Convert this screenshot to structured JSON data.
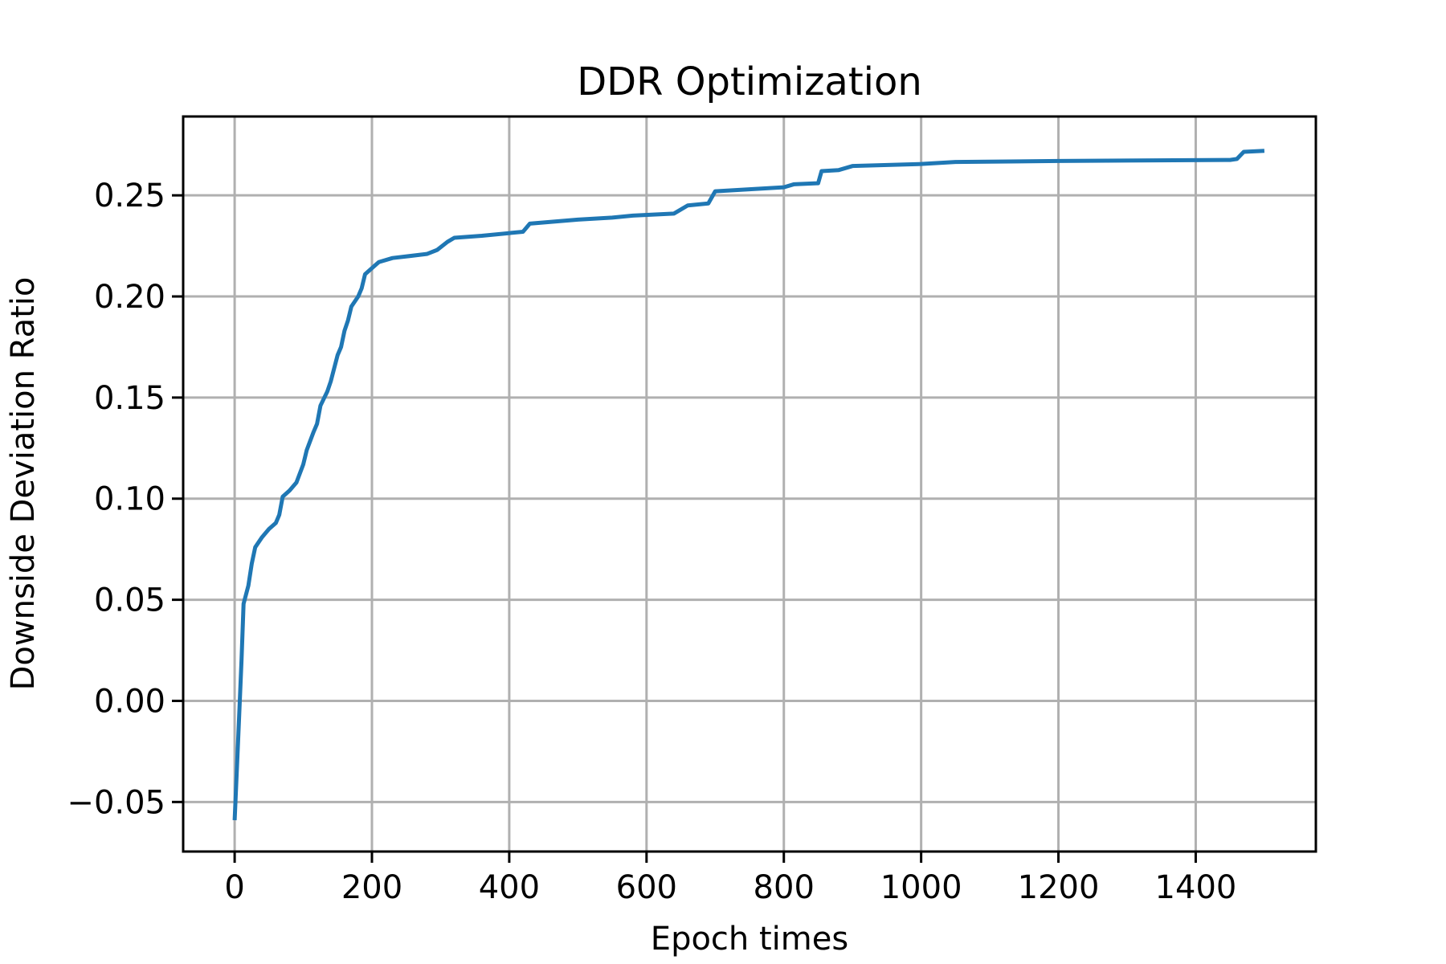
{
  "chart_data": {
    "type": "line",
    "title": "DDR Optimization",
    "x_label": "Epoch times",
    "y_label": "Downside Deviation Ratio",
    "x": [
      0,
      5,
      10,
      13,
      20,
      25,
      30,
      40,
      50,
      60,
      65,
      70,
      80,
      90,
      100,
      105,
      115,
      120,
      125,
      135,
      140,
      150,
      155,
      160,
      165,
      170,
      180,
      185,
      190,
      200,
      210,
      230,
      280,
      295,
      310,
      320,
      360,
      420,
      430,
      500,
      550,
      580,
      640,
      660,
      690,
      700,
      750,
      800,
      815,
      850,
      855,
      880,
      900,
      1000,
      1050,
      1200,
      1450,
      1460,
      1470,
      1500
    ],
    "series": [
      {
        "name": "DDR",
        "color": "#1f77b4",
        "values": [
          -0.059,
          -0.02,
          0.02,
          0.048,
          0.057,
          0.068,
          0.076,
          0.081,
          0.085,
          0.088,
          0.092,
          0.101,
          0.104,
          0.108,
          0.117,
          0.124,
          0.133,
          0.137,
          0.146,
          0.153,
          0.158,
          0.171,
          0.175,
          0.183,
          0.188,
          0.195,
          0.2,
          0.204,
          0.211,
          0.214,
          0.217,
          0.219,
          0.221,
          0.223,
          0.227,
          0.229,
          0.23,
          0.232,
          0.236,
          0.238,
          0.239,
          0.24,
          0.241,
          0.245,
          0.246,
          0.252,
          0.253,
          0.254,
          0.2555,
          0.256,
          0.262,
          0.2625,
          0.2645,
          0.2655,
          0.2665,
          0.267,
          0.2675,
          0.268,
          0.2715,
          0.272
        ]
      }
    ],
    "xlim": [
      -75,
      1575
    ],
    "ylim": [
      -0.0745,
      0.289
    ],
    "xticks": [
      0,
      200,
      400,
      600,
      800,
      1000,
      1200,
      1400
    ],
    "yticks": [
      {
        "value": -0.05,
        "label": "−0.05"
      },
      {
        "value": 0,
        "label": "0.00"
      },
      {
        "value": 0.05,
        "label": "0.05"
      },
      {
        "value": 0.1,
        "label": "0.10"
      },
      {
        "value": 0.15,
        "label": "0.15"
      },
      {
        "value": 0.2,
        "label": "0.20"
      },
      {
        "value": 0.25,
        "label": "0.25"
      }
    ],
    "grid": true
  }
}
